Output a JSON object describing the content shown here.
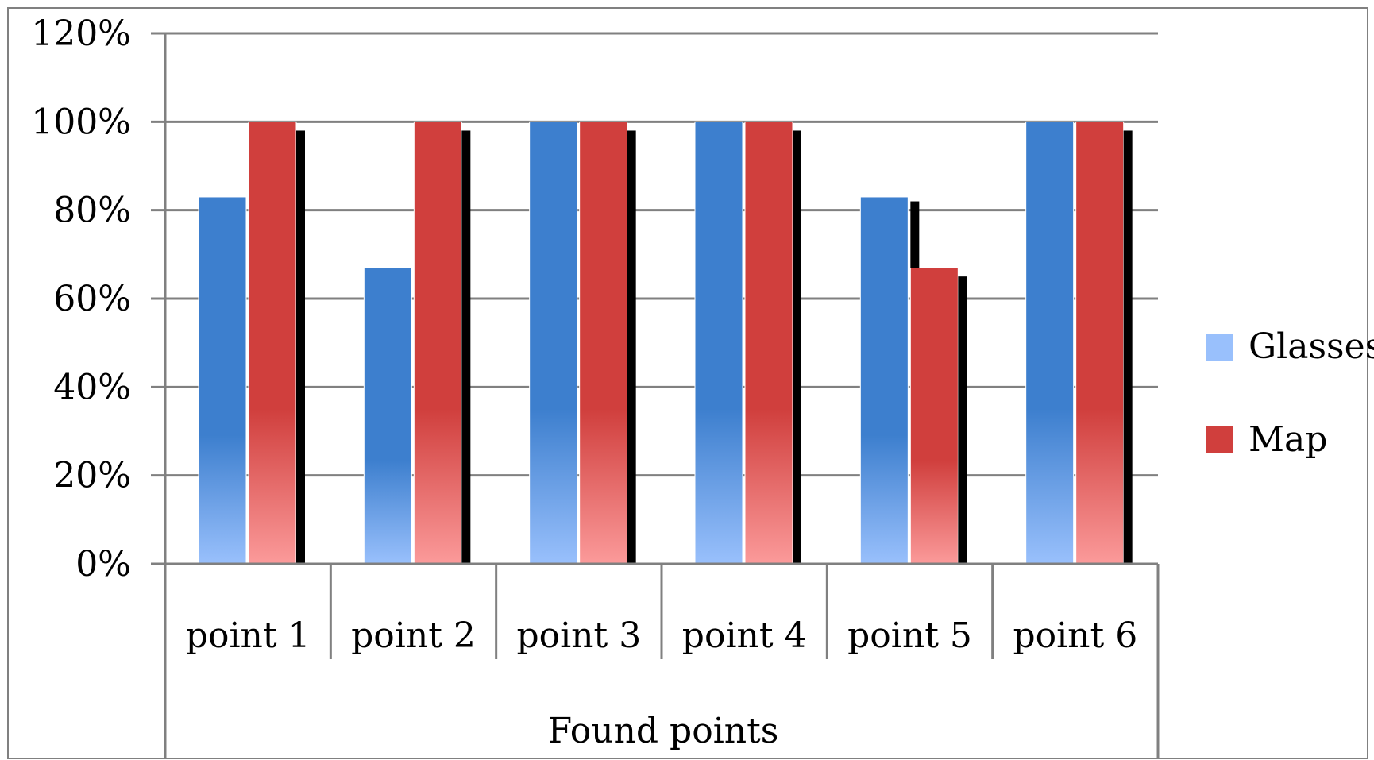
{
  "chart_data": {
    "type": "bar",
    "xlabel": "Found points",
    "ylabel": "",
    "ylim": [
      0,
      1.2
    ],
    "y_ticks": [
      "0%",
      "20%",
      "40%",
      "60%",
      "80%",
      "100%",
      "120%"
    ],
    "categories": [
      "point 1",
      "point 2",
      "point 3",
      "point 4",
      "point 5",
      "point 6"
    ],
    "series": [
      {
        "name": "Glasses",
        "values": [
          0.83,
          0.67,
          1.0,
          1.0,
          0.83,
          1.0
        ]
      },
      {
        "name": "Map",
        "values": [
          1.0,
          1.0,
          1.0,
          1.0,
          0.67,
          1.0
        ]
      }
    ],
    "error_bars": [
      0.98,
      0.98,
      0.98,
      0.98,
      0.82,
      0.98
    ],
    "error_bars_map": [
      0.98,
      0.98,
      0.98,
      0.98,
      0.65,
      0.98
    ],
    "grid": true,
    "legend_position": "right"
  },
  "colors": {
    "glasses_light": "#99c0fc",
    "glasses_dark": "#3d7fce",
    "map_light": "#fb9a9a",
    "map_dark": "#d03f3d",
    "grid": "#808080",
    "error": "#000000"
  }
}
